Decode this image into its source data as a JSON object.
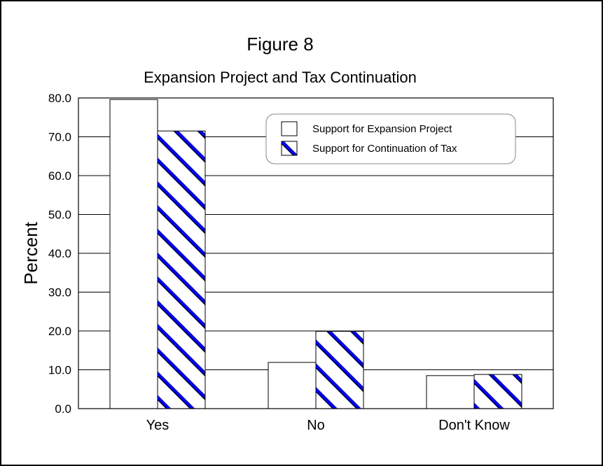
{
  "chart_data": {
    "type": "bar",
    "title": "Figure 8",
    "subtitle": "Expansion Project and Tax Continuation",
    "xlabel": "",
    "ylabel": "Percent",
    "categories": [
      "Yes",
      "No",
      "Don't Know"
    ],
    "series": [
      {
        "name": "Support for Expansion Project",
        "values": [
          79.6,
          11.9,
          8.5
        ],
        "pattern": "none"
      },
      {
        "name": "Support for Continuation of Tax",
        "values": [
          71.5,
          19.9,
          8.8
        ],
        "pattern": "diagonal-stripes"
      }
    ],
    "ylim": [
      0,
      80
    ],
    "yticks": [
      "0.0",
      "10.0",
      "20.0",
      "30.0",
      "40.0",
      "50.0",
      "60.0",
      "70.0",
      "80.0"
    ],
    "grid": true,
    "legend_position": "top-right",
    "colors": {
      "stripe": "#0000ff",
      "bar_fill": "#ffffff",
      "outline": "#000000"
    }
  }
}
